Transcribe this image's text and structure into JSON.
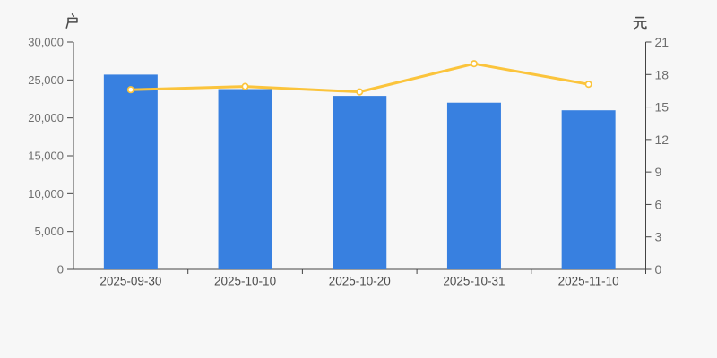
{
  "chart_data": {
    "type": "bar+line",
    "categories": [
      "2025-09-30",
      "2025-10-10",
      "2025-10-20",
      "2025-10-31",
      "2025-11-10"
    ],
    "series": [
      {
        "type": "bar",
        "axis": "left",
        "unit": "户",
        "values": [
          25700,
          23800,
          22900,
          22000,
          21000
        ]
      },
      {
        "type": "line",
        "axis": "right",
        "unit": "元",
        "values": [
          16.6,
          16.9,
          16.4,
          19.0,
          17.1
        ]
      }
    ],
    "left_axis": {
      "name": "户",
      "min": 0,
      "max": 30000,
      "step": 5000,
      "tick_labels": [
        "0",
        "5,000",
        "10,000",
        "15,000",
        "20,000",
        "25,000",
        "30,000"
      ]
    },
    "right_axis": {
      "name": "元",
      "min": 0,
      "max": 21,
      "step": 3,
      "tick_labels": [
        "0",
        "3",
        "6",
        "9",
        "12",
        "15",
        "18",
        "21"
      ]
    },
    "legend": "none",
    "grid": "off",
    "background": "#f7f7f7"
  },
  "colors": {
    "bar": "#3880e0",
    "line": "#fbc43c",
    "marker_fill": "#ffffff",
    "axis_line": "#444444",
    "y_tick_label": "#6e6e6e",
    "x_tick_label": "#4d4d4d",
    "axis_name": "#4a4a4a",
    "background": "#f7f7f7"
  }
}
